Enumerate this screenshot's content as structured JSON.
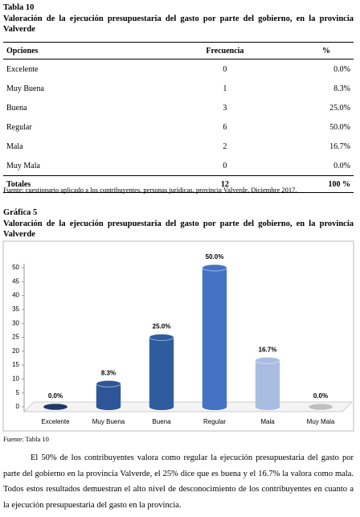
{
  "table": {
    "label": "Tabla 10",
    "title": "Valoración de la ejecución presupuestaria del gasto por parte del gobierno, en la provincia Valverde",
    "header": [
      "Opciones",
      "Frecuencia",
      "%"
    ],
    "rows": [
      [
        "Excelente",
        "0",
        "0.0%"
      ],
      [
        "Muy Buena",
        "1",
        "8.3%"
      ],
      [
        "Buena",
        "3",
        "25.0%"
      ],
      [
        "Regular",
        "6",
        "50.0%"
      ],
      [
        "Mala",
        "2",
        "16.7%"
      ],
      [
        "Muy Mala",
        "0",
        "0.0%"
      ]
    ],
    "totals": [
      "Totales",
      "12",
      "100 %"
    ],
    "source": "Fuente: cuestionario aplicado a los contribuyentes, personas jurídicas,  provincia Valverde. Diciembre 2017."
  },
  "figure": {
    "label": "Gráfica 5",
    "title": "Valoración de la ejecución presupuestaria del gasto por parte del gobierno, en la provincia Valverde",
    "source": "Fuente: Tabla 10"
  },
  "chart_data": {
    "type": "bar",
    "categories": [
      "Excelente",
      "Muy Buena",
      "Buena",
      "Regular",
      "Mala",
      "Muy Mala"
    ],
    "values": [
      0,
      8.3,
      25,
      50,
      16.7,
      0
    ],
    "value_labels": [
      "0.0%",
      "8.3%",
      "25.0%",
      "50.0%",
      "16.7%",
      "0.0%"
    ],
    "colors": [
      "#1f3864",
      "#2e5597",
      "#2f5c9e",
      "#4472c4",
      "#a9bde0",
      "#bfbfbf"
    ],
    "ylim": [
      0,
      50
    ],
    "yticks": [
      0,
      5,
      10,
      15,
      20,
      25,
      30,
      35,
      40,
      45,
      50
    ]
  },
  "paragraph": "El 50% de los contribuyentes valora como regular la ejecución presupuestaria del gasto por parte del gobierno en la provincia Valverde, el 25% dice que es buena y el 16.7% la valora como mala. Todos estos resultados demuestran el alto nivel de desconocimiento de los contribuyentes en cuanto a la ejecución presupuestaria del gasto en la provincia."
}
